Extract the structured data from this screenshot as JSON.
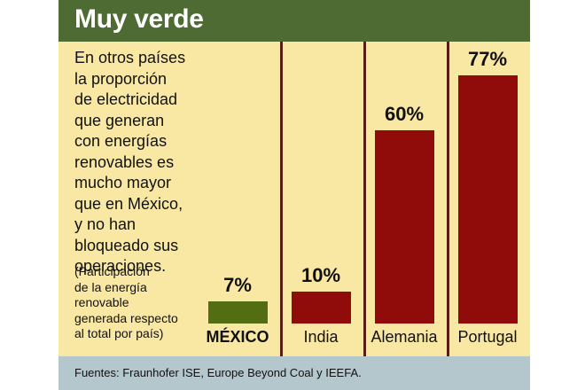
{
  "header": {
    "title": "Muy verde"
  },
  "description": {
    "lines": [
      "En otros países",
      "la proporción",
      "de electricidad",
      "que generan",
      "con energías",
      "renovables es",
      "mucho mayor",
      "que en México,",
      "y no han",
      "bloqueado sus",
      "operaciones."
    ],
    "note_lines": [
      "(Participación",
      "de la energía",
      "renovable",
      "generada respecto",
      "al total por país)"
    ]
  },
  "chart_data": {
    "type": "bar",
    "categories": [
      "MÉXICO",
      "India",
      "Alemania",
      "Portugal"
    ],
    "values": [
      7,
      10,
      60,
      77
    ],
    "value_labels": [
      "7%",
      "10%",
      "60%",
      "77%"
    ],
    "highlight": "MÉXICO",
    "colors": {
      "highlight": "#536e12",
      "default": "#8f0c0a"
    },
    "ylim": [
      0,
      100
    ],
    "grid": false
  },
  "footer": {
    "source": "Fuentes: Fraunhofer ISE, Europe Beyond Coal y IEEFA."
  },
  "colors": {
    "background": "#f9e8a3",
    "header": "#4d6b32",
    "footer": "#b3c7cc",
    "divider": "#5a1e14"
  }
}
